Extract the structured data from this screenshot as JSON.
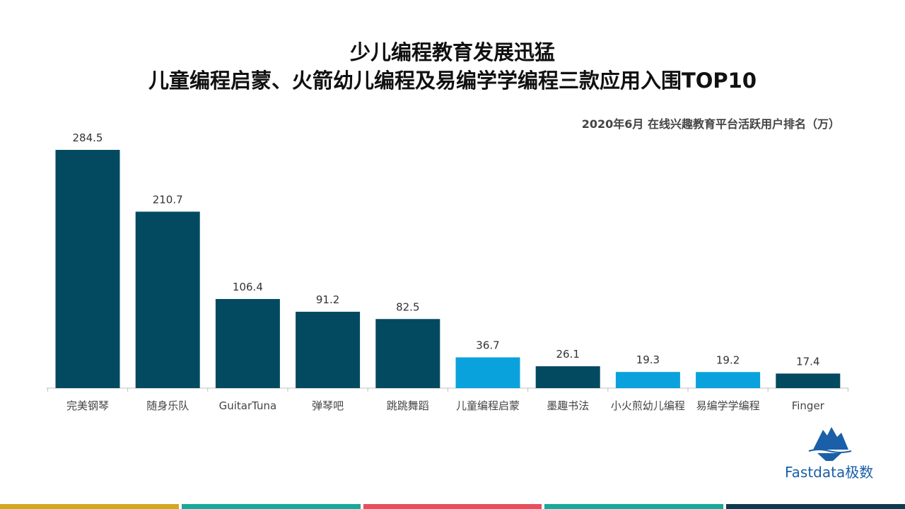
{
  "title": {
    "line1": "少儿编程教育发展迅猛",
    "line2": "儿童编程启蒙、火箭幼儿编程及易编学学编程三款应用入围TOP10"
  },
  "subtitle": "2020年6月 在线兴趣教育平台活跃用户排名（万）",
  "chart_data": {
    "type": "bar",
    "categories": [
      "完美钢琴",
      "随身乐队",
      "GuitarTuna",
      "弹琴吧",
      "跳跳舞蹈",
      "儿童编程启蒙",
      "墨趣书法",
      "小火煎幼儿编程",
      "易编学学编程",
      "Finger"
    ],
    "values": [
      284.5,
      210.7,
      106.4,
      91.2,
      82.5,
      36.7,
      26.1,
      19.3,
      19.2,
      17.4
    ],
    "value_labels": [
      "284.5",
      "210.7",
      "106.4",
      "91.2",
      "82.5",
      "36.7",
      "26.1",
      "19.3",
      "19.2",
      "17.4"
    ],
    "highlight": [
      false,
      false,
      false,
      false,
      false,
      true,
      false,
      true,
      true,
      false
    ],
    "colors": {
      "default": "#034a61",
      "highlight": "#0aa2dc",
      "axis": "#bfbfbf"
    },
    "ylim": [
      0,
      284.5
    ],
    "grid": false,
    "title": "",
    "xlabel": "",
    "ylabel": ""
  },
  "logo": {
    "text": "Fastdata极数",
    "icon": "iceberg-logo-icon"
  },
  "footer": {
    "colors": [
      "#d4a81c",
      "#17a99b",
      "#e8505b",
      "#17a99b",
      "#0e3a4f"
    ]
  }
}
